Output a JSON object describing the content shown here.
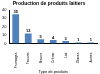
{
  "chart_data": {
    "type": "bar",
    "title": "Production de produits laitiers",
    "x_label": "Type de produits",
    "categories": [
      "Fromages",
      "Yaourts",
      "Beurre",
      "Crème",
      "Lait",
      "Glaces",
      "Autres"
    ],
    "values": [
      35,
      12,
      5,
      4,
      3,
      1,
      1
    ],
    "color": "#4f81bd",
    "ylim": [
      0,
      40
    ],
    "yticks": [
      0,
      10,
      20,
      30,
      40
    ],
    "grid": false,
    "data_labels": true
  }
}
